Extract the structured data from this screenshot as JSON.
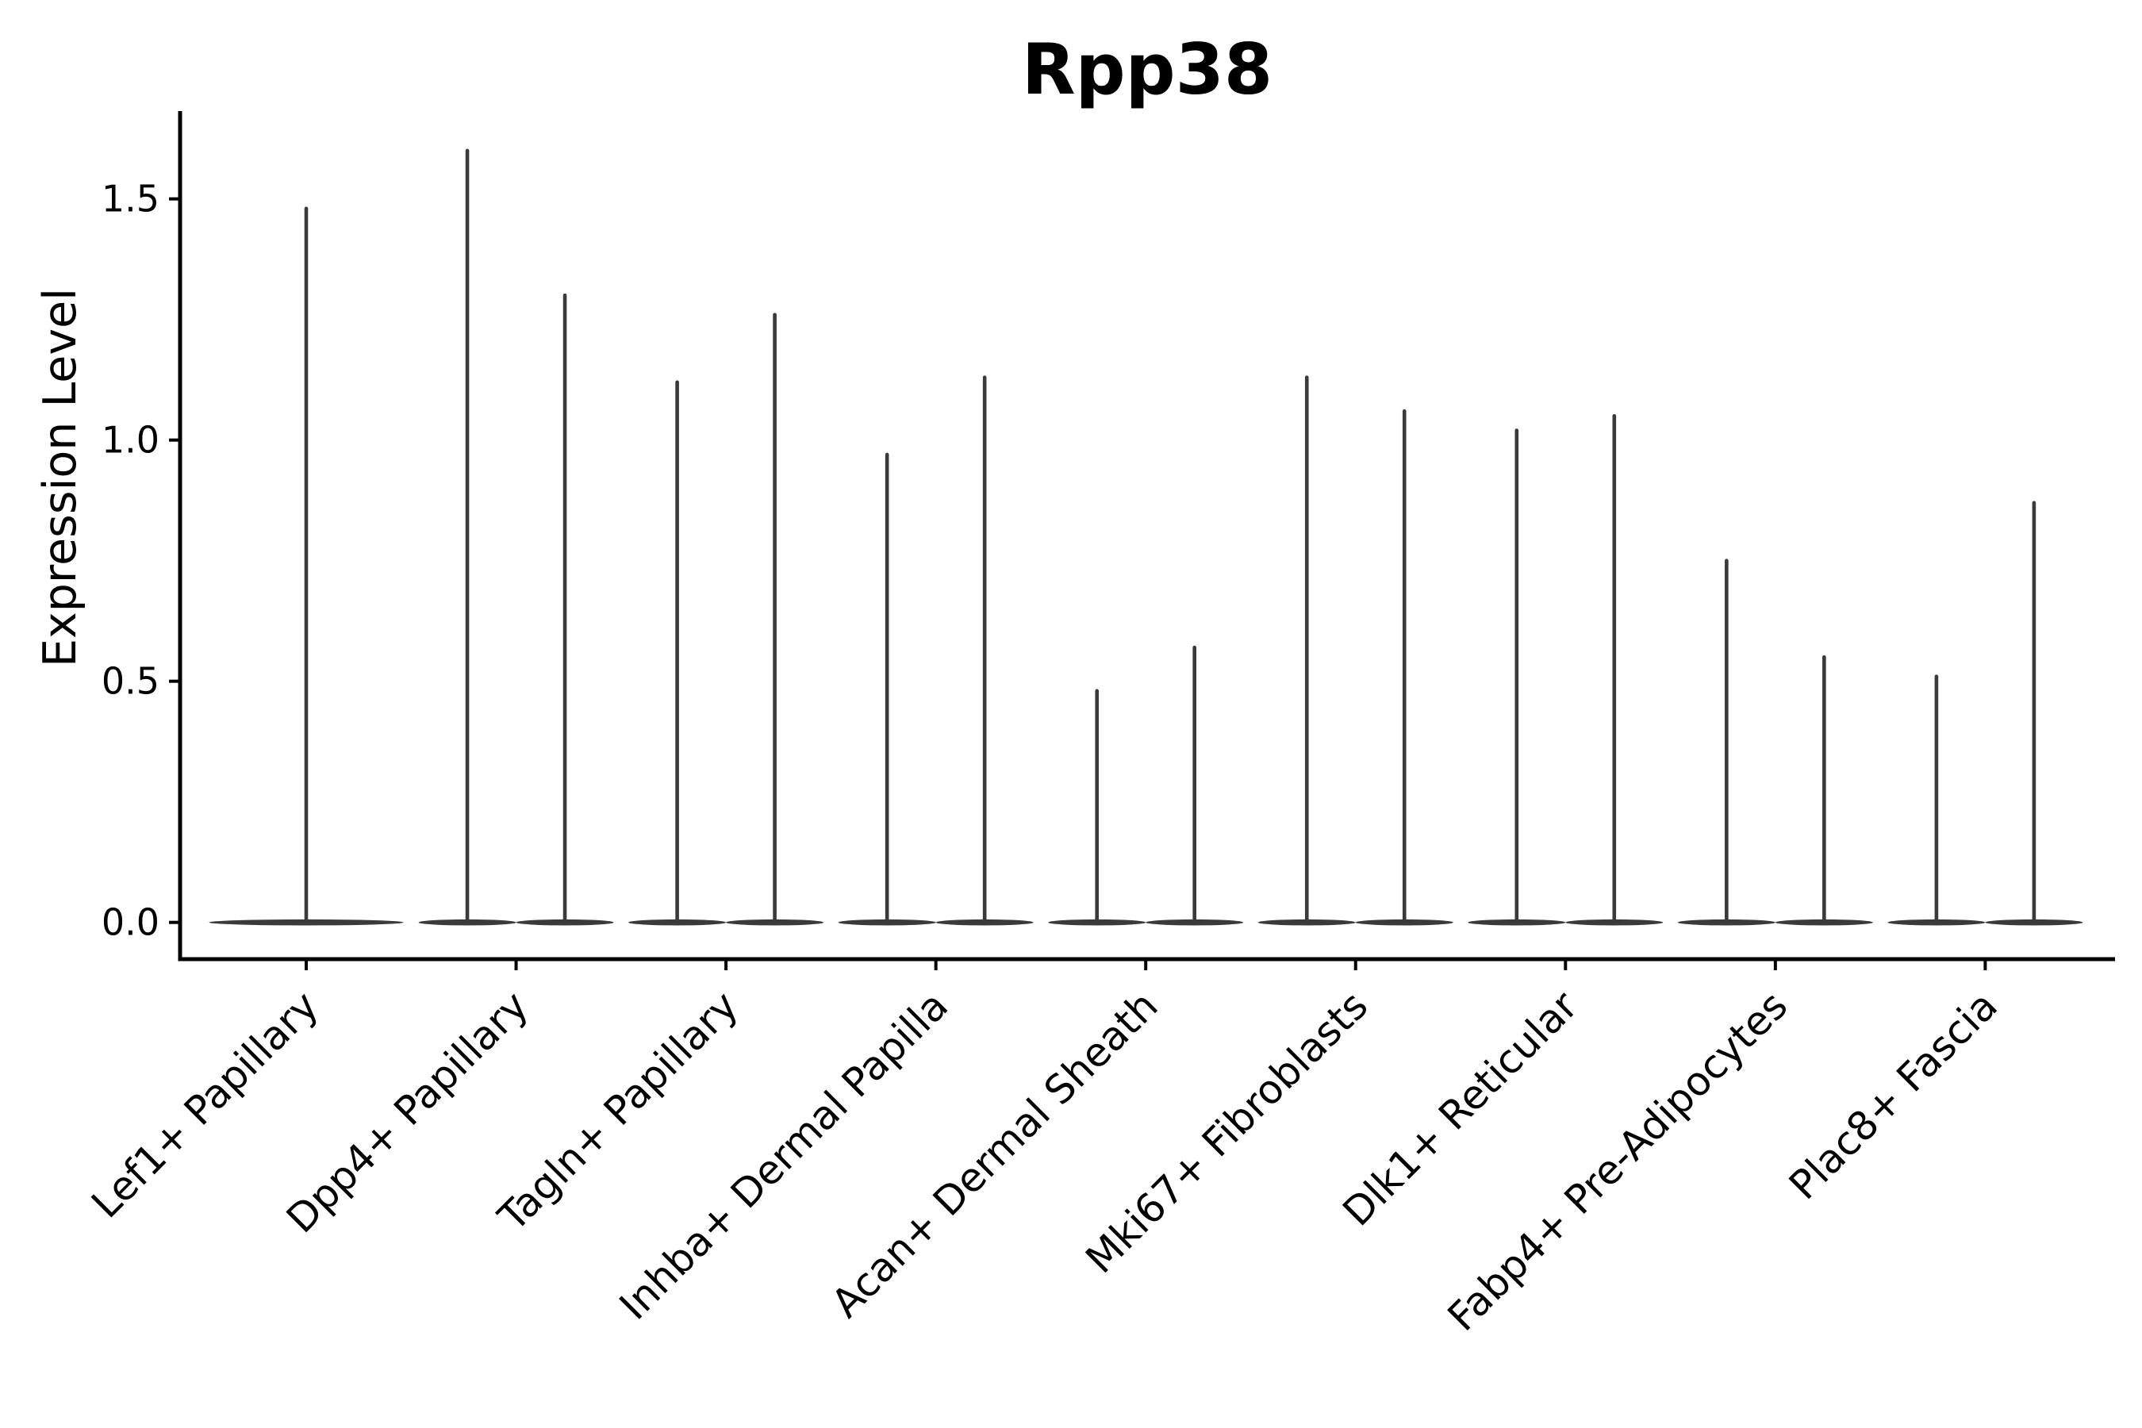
{
  "chart_data": {
    "type": "violin",
    "title": "Rpp38",
    "xlabel": "",
    "ylabel": "Expression Level",
    "ylim": [
      -0.08,
      1.68
    ],
    "grid": false,
    "legend": null,
    "yticks": [
      {
        "value": 0.0,
        "label": "0.0"
      },
      {
        "value": 0.5,
        "label": "0.5"
      },
      {
        "value": 1.0,
        "label": "1.0"
      },
      {
        "value": 1.5,
        "label": "1.5"
      }
    ],
    "categories": [
      "Lef1+ Papillary",
      "Dpp4+ Papillary",
      "Tagln+ Papillary",
      "Inhba+ Dermal Papilla",
      "Acan+ Dermal Sheath",
      "Mki67+ Fibroblasts",
      "Dlk1+ Reticular",
      "Fabp4+ Pre-Adipocytes",
      "Plac8+ Fascia"
    ],
    "violins": [
      {
        "category": "Lef1+ Papillary",
        "baseline_value": 0.0,
        "spikes": [
          {
            "position": "center",
            "max": 1.48
          }
        ]
      },
      {
        "category": "Dpp4+ Papillary",
        "baseline_value": 0.0,
        "spikes": [
          {
            "position": "left",
            "max": 1.6
          },
          {
            "position": "right",
            "max": 1.3
          }
        ]
      },
      {
        "category": "Tagln+ Papillary",
        "baseline_value": 0.0,
        "spikes": [
          {
            "position": "left",
            "max": 1.12
          },
          {
            "position": "right",
            "max": 1.26
          }
        ]
      },
      {
        "category": "Inhba+ Dermal Papilla",
        "baseline_value": 0.0,
        "spikes": [
          {
            "position": "left",
            "max": 0.97
          },
          {
            "position": "right",
            "max": 1.13
          }
        ]
      },
      {
        "category": "Acan+ Dermal Sheath",
        "baseline_value": 0.0,
        "spikes": [
          {
            "position": "left",
            "max": 0.48
          },
          {
            "position": "right",
            "max": 0.57
          }
        ]
      },
      {
        "category": "Mki67+ Fibroblasts",
        "baseline_value": 0.0,
        "spikes": [
          {
            "position": "left",
            "max": 1.13
          },
          {
            "position": "right",
            "max": 1.06
          }
        ]
      },
      {
        "category": "Dlk1+ Reticular",
        "baseline_value": 0.0,
        "spikes": [
          {
            "position": "left",
            "max": 1.02
          },
          {
            "position": "right",
            "max": 1.05
          }
        ]
      },
      {
        "category": "Fabp4+ Pre-Adipocytes",
        "baseline_value": 0.0,
        "spikes": [
          {
            "position": "left",
            "max": 0.75
          },
          {
            "position": "right",
            "max": 0.55
          }
        ]
      },
      {
        "category": "Plac8+ Fascia",
        "baseline_value": 0.0,
        "spikes": [
          {
            "position": "left",
            "max": 0.51
          },
          {
            "position": "right",
            "max": 0.87
          }
        ]
      }
    ],
    "colors": {
      "violin": "#3a3a3a",
      "axis": "#000000",
      "text": "#000000",
      "background": "#ffffff"
    }
  }
}
